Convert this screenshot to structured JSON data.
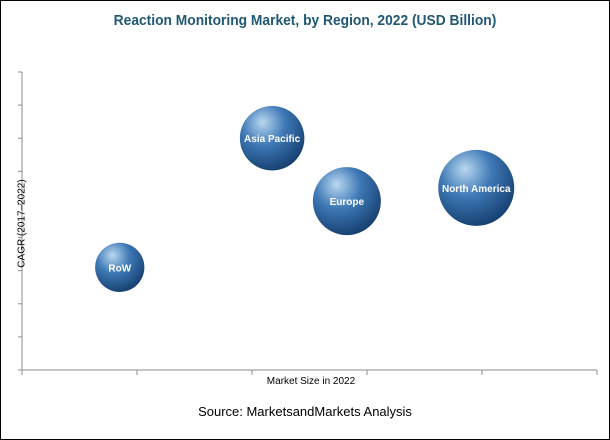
{
  "chart_data": {
    "type": "bubble",
    "title": "Reaction Monitoring Market, by Region, 2022 (USD Billion)",
    "xlabel": "Market Size in 2022",
    "ylabel": "CAGR (2017–2022)",
    "axis_values_shown": false,
    "grid": false,
    "xlim": [
      0,
      10
    ],
    "ylim": [
      0,
      9
    ],
    "points": [
      {
        "name": "Asia Pacific",
        "x": 4.35,
        "y": 7.0,
        "size": 0.72
      },
      {
        "name": "Europe",
        "x": 5.65,
        "y": 5.1,
        "size": 0.8
      },
      {
        "name": "North America",
        "x": 7.9,
        "y": 5.5,
        "size": 1.0
      },
      {
        "name": "RoW",
        "x": 1.7,
        "y": 3.1,
        "size": 0.42
      }
    ],
    "colors": {
      "bubble_light": "#b9d8f0",
      "bubble_mid": "#3f79b6",
      "bubble_dark": "#133c6c",
      "title": "#1f5873"
    }
  },
  "source": "Source: MarketsandMarkets Analysis"
}
